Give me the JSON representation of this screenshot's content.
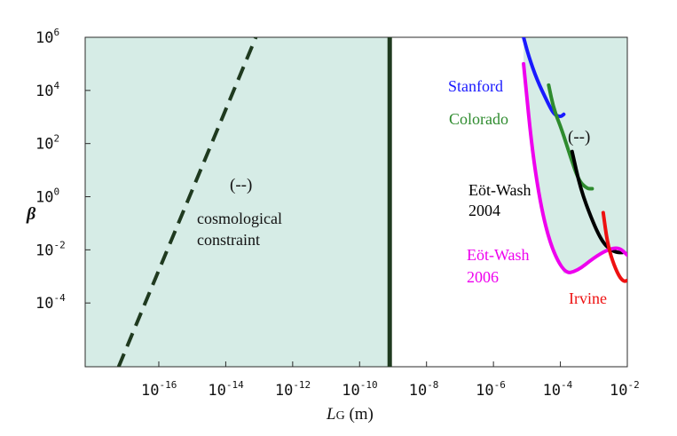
{
  "chart_data": {
    "type": "line",
    "x_scale": "log10",
    "y_scale": "log10",
    "xlim_log10": [
      -18.2,
      -2
    ],
    "ylim_log10": [
      -6.4,
      6
    ],
    "x_ticks": [
      {
        "base": "10",
        "exp": "-16",
        "log10": -16
      },
      {
        "base": "10",
        "exp": "-14",
        "log10": -14
      },
      {
        "base": "10",
        "exp": "-12",
        "log10": -12
      },
      {
        "base": "10",
        "exp": "-10",
        "log10": -10
      },
      {
        "base": "10",
        "exp": "-8",
        "log10": -8
      },
      {
        "base": "10",
        "exp": "-6",
        "log10": -6
      },
      {
        "base": "10",
        "exp": "-4",
        "log10": -4
      },
      {
        "base": "10",
        "exp": "-2",
        "log10": -2
      }
    ],
    "y_ticks": [
      {
        "base": "10",
        "exp": "6",
        "log10": 6
      },
      {
        "base": "10",
        "exp": "4",
        "log10": 4
      },
      {
        "base": "10",
        "exp": "2",
        "log10": 2
      },
      {
        "base": "10",
        "exp": "0",
        "log10": 0
      },
      {
        "base": "10",
        "exp": "-2",
        "log10": -2
      },
      {
        "base": "10",
        "exp": "-4",
        "log10": -4
      }
    ],
    "xlabel_main": "L",
    "xlabel_sub": "G",
    "xlabel_unit": " (m)",
    "ylabel": "β",
    "vertical_line_log10_x": -9.1,
    "excluded_region_right_top_log10": [
      -9.1,
      6
    ],
    "region_label": "(--)",
    "cosmological_label": [
      "cosmological",
      "constraint"
    ],
    "cosmological_label_marker": "(--)",
    "series": [
      {
        "name": "cosmological constraint",
        "color": "#1f3a1f",
        "dashed": true,
        "points_log10": [
          [
            -17.2,
            -6.4
          ],
          [
            -13.1,
            6
          ]
        ]
      },
      {
        "name": "Stanford",
        "label": "Stanford",
        "color": "#1a1aff",
        "points_log10": [
          [
            -5.1,
            6
          ],
          [
            -4.95,
            5.3
          ],
          [
            -4.7,
            4.4
          ],
          [
            -4.4,
            3.6
          ],
          [
            -4.2,
            3.1
          ],
          [
            -4.0,
            3.0
          ],
          [
            -3.9,
            3.1
          ]
        ]
      },
      {
        "name": "Colorado",
        "label": "Colorado",
        "color": "#2e8b2e",
        "points_log10": [
          [
            -4.35,
            4.2
          ],
          [
            -4.2,
            3.3
          ],
          [
            -3.95,
            2.5
          ],
          [
            -3.7,
            1.5
          ],
          [
            -3.45,
            0.6
          ],
          [
            -3.2,
            0.3
          ],
          [
            -3.05,
            0.3
          ]
        ]
      },
      {
        "name": "Eöt-Wash 2004",
        "label": [
          "Eöt-Wash",
          "2004"
        ],
        "color": "#000000",
        "points_log10": [
          [
            -3.65,
            1.7
          ],
          [
            -3.4,
            0.3
          ],
          [
            -3.05,
            -0.9
          ],
          [
            -2.75,
            -1.7
          ],
          [
            -2.5,
            -2.0
          ],
          [
            -2.3,
            -2.1
          ],
          [
            -2.15,
            -2.1
          ]
        ]
      },
      {
        "name": "Eöt-Wash 2006",
        "label": [
          "Eöt-Wash",
          "2006"
        ],
        "color": "#ee00ee",
        "points_log10": [
          [
            -5.1,
            5.0
          ],
          [
            -4.8,
            1.2
          ],
          [
            -4.4,
            -1.5
          ],
          [
            -3.9,
            -2.9
          ],
          [
            -3.5,
            -2.8
          ],
          [
            -3.0,
            -2.3
          ],
          [
            -2.6,
            -2.0
          ],
          [
            -2.25,
            -1.9
          ],
          [
            -2.0,
            -2.2
          ]
        ]
      },
      {
        "name": "Irvine",
        "label": "Irvine",
        "color": "#ee1111",
        "points_log10": [
          [
            -2.72,
            -0.6
          ],
          [
            -2.6,
            -1.7
          ],
          [
            -2.45,
            -2.4
          ],
          [
            -2.25,
            -3.0
          ],
          [
            -2.1,
            -3.2
          ],
          [
            -2.0,
            -3.15
          ]
        ]
      }
    ]
  },
  "colors": {
    "excluded_fill": "#d6ece6",
    "axis": "#2b2b2b",
    "text": "#111111"
  }
}
